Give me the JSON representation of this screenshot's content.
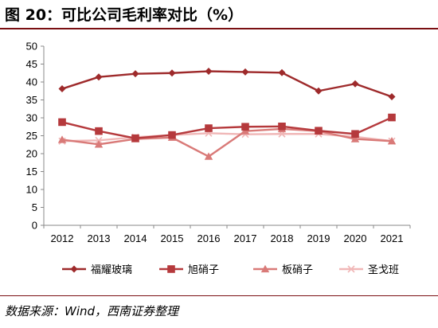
{
  "figure_title": "图 20：可比公司毛利率对比（%）",
  "source_note": "数据来源：Wind，西南证券整理",
  "chart_data": {
    "type": "line",
    "title": "",
    "xlabel": "",
    "ylabel": "",
    "x": [
      "2012",
      "2013",
      "2014",
      "2015",
      "2016",
      "2017",
      "2018",
      "2019",
      "2020",
      "2021"
    ],
    "ylim": [
      0,
      50
    ],
    "yticks": [
      0,
      5,
      10,
      15,
      20,
      25,
      30,
      35,
      40,
      45,
      50
    ],
    "grid": false,
    "legend_position": "bottom",
    "series": [
      {
        "name": "福耀玻璃",
        "marker": "diamond",
        "color": "#9e2a2b",
        "values": [
          38.1,
          41.4,
          42.3,
          42.5,
          43.0,
          42.8,
          42.6,
          37.5,
          39.5,
          35.9
        ]
      },
      {
        "name": "旭硝子",
        "marker": "square",
        "color": "#b5393c",
        "values": [
          28.8,
          26.3,
          24.3,
          25.2,
          27.1,
          27.5,
          27.6,
          26.4,
          25.5,
          30.1
        ]
      },
      {
        "name": "板硝子",
        "marker": "triangle",
        "color": "#d97a78",
        "values": [
          23.9,
          22.6,
          24.1,
          24.5,
          19.2,
          26.3,
          26.9,
          26.3,
          24.1,
          23.5
        ]
      },
      {
        "name": "圣戈班",
        "marker": "x",
        "color": "#f0b7b7",
        "values": [
          23.5,
          23.7,
          24.6,
          25.2,
          25.7,
          25.4,
          25.5,
          25.5,
          24.7,
          23.5
        ]
      }
    ]
  }
}
